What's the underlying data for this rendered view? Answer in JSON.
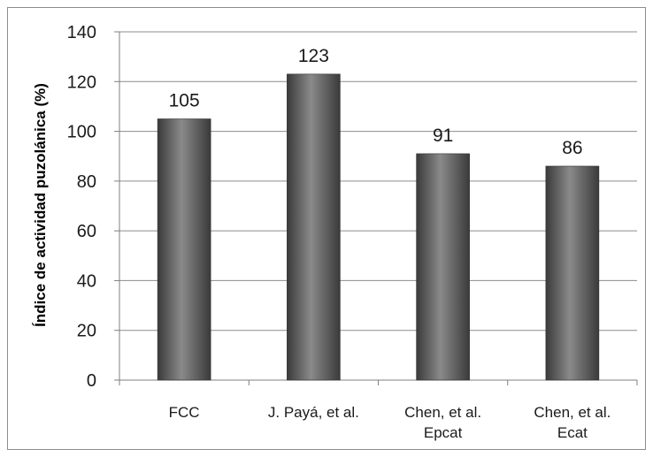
{
  "chart_data": {
    "type": "bar",
    "title": "",
    "xlabel": "",
    "ylabel": "Índice de actividad puzolánica (%)",
    "categories": [
      [
        "FCC"
      ],
      [
        "J. Payá, et al."
      ],
      [
        "Chen, et al.",
        "Epcat"
      ],
      [
        "Chen, et al.",
        "Ecat"
      ]
    ],
    "values": [
      105,
      123,
      91,
      86
    ],
    "ylim": [
      0,
      140
    ],
    "yticks": [
      0,
      20,
      40,
      60,
      80,
      100,
      120,
      140
    ],
    "grid": true,
    "legend": "none",
    "colors": {
      "bar_dark": "#3a3a3a",
      "bar_light": "#8a8a8a",
      "grid": "#8c8c8c",
      "axis": "#7f7f7f"
    }
  }
}
